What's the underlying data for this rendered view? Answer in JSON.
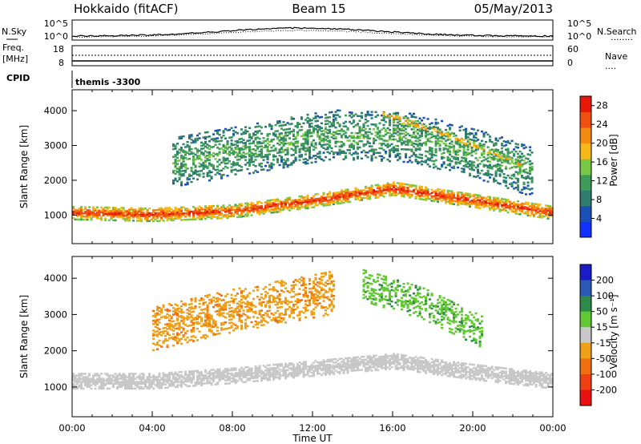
{
  "header": {
    "station": "Hokkaido (fitACF)",
    "beam": "Beam 15",
    "date": "05/May/2013"
  },
  "strips": {
    "nsky": {
      "label": "N.Sky",
      "left_ticks": [
        "10^5",
        "10^0"
      ],
      "right_ticks": [
        "10^5",
        "10^0"
      ],
      "right_label": "N.Search",
      "right_legend": "........"
    },
    "freq": {
      "label_line1": "Freq.",
      "label_line2": "[MHz]",
      "left_ticks": [
        "18",
        "8"
      ],
      "right_ticks": [
        "60",
        "0"
      ],
      "right_label": "Nave",
      "right_legend": "...."
    },
    "cpid": {
      "label": "CPID",
      "value": "themis -3300"
    }
  },
  "colors": {
    "power_scale": [
      "#1430ff",
      "#1d4fb8",
      "#2f7d6e",
      "#3e9b5a",
      "#78c845",
      "#f5b818",
      "#f58a10",
      "#f05010",
      "#e81808"
    ],
    "velocity_scale": [
      "#1b1bc8",
      "#2a5ab4",
      "#2e8a4a",
      "#62c833",
      "#c8c8c8",
      "#f0a018",
      "#f07010",
      "#f04010",
      "#e81010"
    ]
  },
  "chart_data": [
    {
      "type": "heatmap",
      "parameter": "power",
      "ylabel": "Slant Range [km]",
      "yticks": [
        1000,
        2000,
        3000,
        4000
      ],
      "ylim": [
        180,
        4600
      ],
      "xlim_hours": [
        0,
        24
      ],
      "xtick_labels": [
        "00:00",
        "04:00",
        "08:00",
        "12:00",
        "16:00",
        "20:00",
        "00:00"
      ],
      "colorbar": {
        "label": "Power [dB]",
        "ticks": [
          4,
          8,
          12,
          16,
          20,
          24,
          28
        ],
        "range": [
          0,
          30
        ]
      },
      "bands": [
        {
          "name": "main-echo",
          "t_start": 0.0,
          "t_end": 24.0,
          "center_km_at": [
            [
              0,
              1050
            ],
            [
              4,
              1000
            ],
            [
              8,
              1100
            ],
            [
              12,
              1400
            ],
            [
              16,
              1750
            ],
            [
              20,
              1400
            ],
            [
              24,
              1050
            ]
          ],
          "width_km": 380,
          "value": 27
        },
        {
          "name": "upper-scatter",
          "t_start": 5.0,
          "t_end": 23.0,
          "center_km_at": [
            [
              5,
              2500
            ],
            [
              9,
              2900
            ],
            [
              13,
              3300
            ],
            [
              17,
              3200
            ],
            [
              21,
              2600
            ],
            [
              23,
              2200
            ]
          ],
          "width_km": 1400,
          "value": 13
        },
        {
          "name": "evening-stripe",
          "t_start": 15.5,
          "t_end": 22.5,
          "center_km_at": [
            [
              15.5,
              3900
            ],
            [
              19,
              3200
            ],
            [
              22.5,
              2400
            ]
          ],
          "width_km": 250,
          "value": 21
        }
      ]
    },
    {
      "type": "heatmap",
      "parameter": "velocity",
      "ylabel": "Slant Range [km]",
      "yticks": [
        1000,
        2000,
        3000,
        4000
      ],
      "ylim": [
        180,
        4600
      ],
      "xlim_hours": [
        0,
        24
      ],
      "xtick_labels": [
        "00:00",
        "04:00",
        "08:00",
        "12:00",
        "16:00",
        "20:00",
        "00:00"
      ],
      "xlabel": "Time UT",
      "colorbar": {
        "label": "Velocity [m s⁻¹]",
        "ticks": [
          200,
          100,
          50,
          15,
          -15,
          -50,
          -100,
          -200
        ]
      },
      "bands": [
        {
          "name": "ground-scatter",
          "t_start": 0.0,
          "t_end": 24.0,
          "center_km_at": [
            [
              0,
              1150
            ],
            [
              4,
              1150
            ],
            [
              8,
              1300
            ],
            [
              12,
              1500
            ],
            [
              16,
              1700
            ],
            [
              20,
              1400
            ],
            [
              24,
              1150
            ]
          ],
          "width_km": 420,
          "value": 0
        },
        {
          "name": "morning-negative",
          "t_start": 4.0,
          "t_end": 13.0,
          "center_km_at": [
            [
              4,
              2600
            ],
            [
              8,
              3100
            ],
            [
              12,
              3500
            ],
            [
              13,
              3600
            ]
          ],
          "width_km": 1200,
          "value": -40
        },
        {
          "name": "afternoon-positive",
          "t_start": 14.5,
          "t_end": 20.5,
          "center_km_at": [
            [
              14.5,
              3800
            ],
            [
              17.5,
              3300
            ],
            [
              20.5,
              2500
            ]
          ],
          "width_km": 900,
          "value": 40
        }
      ]
    }
  ]
}
